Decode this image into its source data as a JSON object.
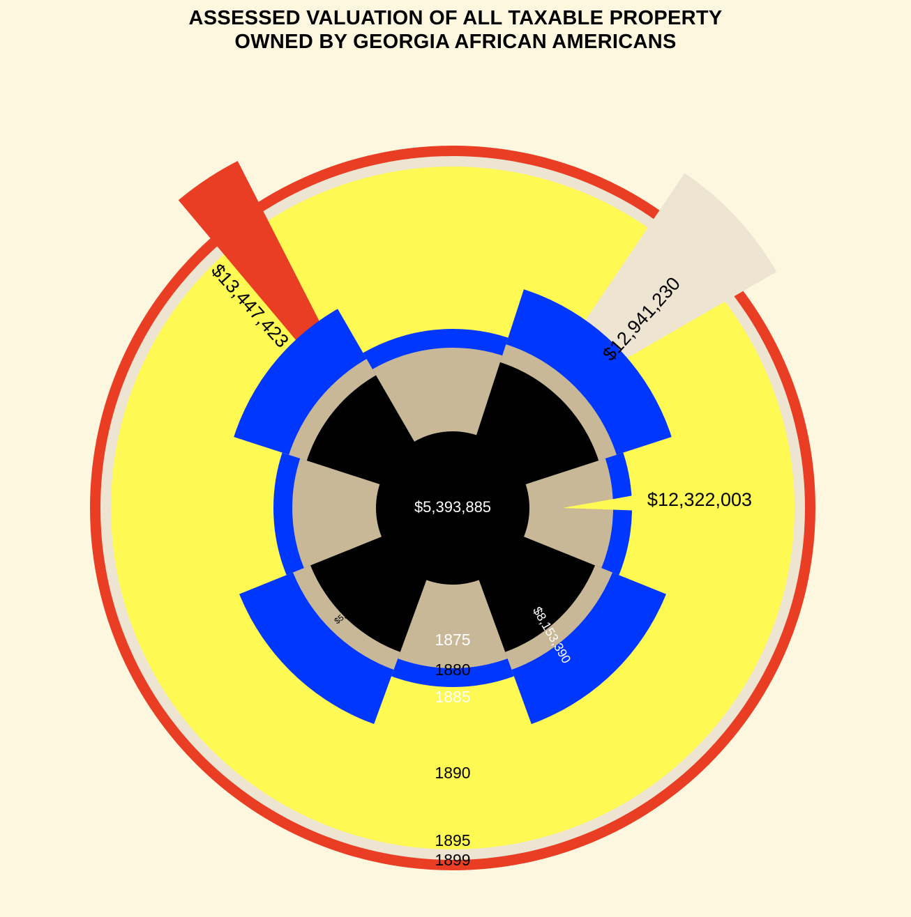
{
  "chart_data": {
    "type": "pie",
    "title": [
      "ASSESSED VALUATION OF ALL TAXABLE PROPERTY",
      "OWNED BY GEORGIA AFRICAN AMERICANS"
    ],
    "rings": [
      {
        "year": "1875",
        "value": 5393885,
        "value_label": "$5,393,885",
        "color": "#000000",
        "label_color": "#ffffff"
      },
      {
        "year": "1880",
        "value": 5764293,
        "value_label": "$5,764,293",
        "color": "#c8b898",
        "label_color": "#000000"
      },
      {
        "year": "1885",
        "value": 8153390,
        "value_label": "$8,153,390",
        "color": "#0037ff",
        "label_color": "#ffffff"
      },
      {
        "year": "1890",
        "value": 12322003,
        "value_label": "$12,322,003",
        "color": "#fef953",
        "label_color": "#000000"
      },
      {
        "year": "1895",
        "value": 12941230,
        "value_label": "$12,941,230",
        "color": "#ede5d2",
        "label_color": "#000000"
      },
      {
        "year": "1899",
        "value": 13447423,
        "value_label": "$13,447,423",
        "color": "#e93e23",
        "label_color": "#000000"
      }
    ],
    "background": "#fdf7e0"
  }
}
